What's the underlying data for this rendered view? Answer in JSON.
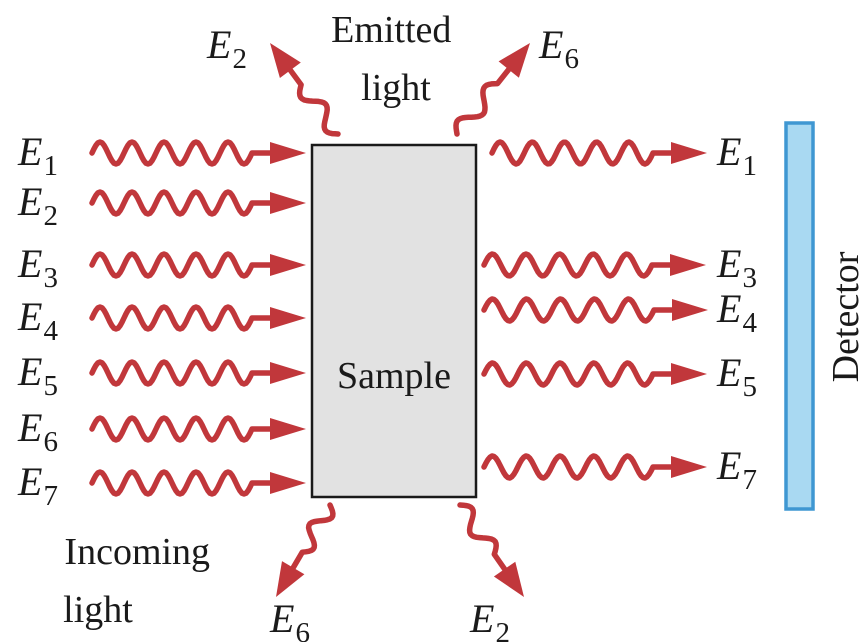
{
  "sample_label": "Sample",
  "detector_label": "Detector",
  "emitted_label": [
    "Emitted",
    "light"
  ],
  "incoming_label": [
    "Incoming",
    "light"
  ],
  "energy_symbol": "E",
  "incoming_subscripts": [
    "1",
    "2",
    "3",
    "4",
    "5",
    "6",
    "7"
  ],
  "transmitted_subscripts": [
    "1",
    "3",
    "4",
    "5",
    "7"
  ],
  "emitted_top_subscripts": [
    "2",
    "6"
  ],
  "emitted_bottom_subscripts": [
    "6",
    "2"
  ],
  "colors": {
    "wave": "#c1373b",
    "sample_fill": "#e2e2e2",
    "sample_stroke": "#1a1a1a",
    "detector_fill": "#a9d9f2",
    "detector_stroke": "#3f97d2",
    "text": "#1a1a1a"
  }
}
